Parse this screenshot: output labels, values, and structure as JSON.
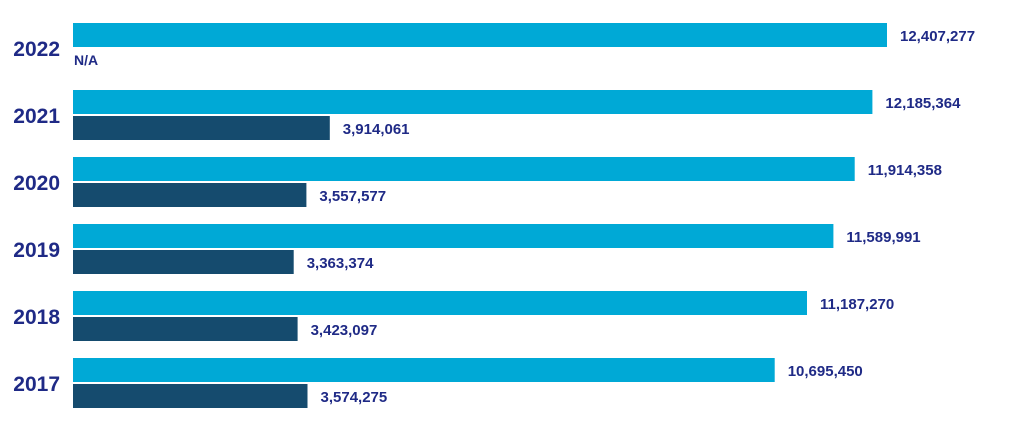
{
  "chart_data": {
    "type": "bar",
    "orientation": "horizontal",
    "categories": [
      "2022",
      "2021",
      "2020",
      "2019",
      "2018",
      "2017"
    ],
    "series": [
      {
        "values": [
          12407277,
          12185364,
          11914358,
          11589991,
          11187270,
          10695450
        ],
        "labels": [
          "12,407,277",
          "12,185,364",
          "11,914,358",
          "11,589,991",
          "11,187,270",
          "10,695,450"
        ],
        "color": "#00a9d6"
      },
      {
        "values": [
          null,
          3914061,
          3557577,
          3363374,
          3423097,
          3574275
        ],
        "labels": [
          "N/A",
          "3,914,061",
          "3,557,577",
          "3,363,374",
          "3,423,097",
          "3,574,275"
        ],
        "color": "#154b6e"
      }
    ],
    "xlim": [
      0,
      12407277
    ],
    "grid": false,
    "title": "",
    "xlabel": "",
    "ylabel": ""
  },
  "colors": {
    "text": "#1f2a86",
    "background": "#ffffff"
  }
}
